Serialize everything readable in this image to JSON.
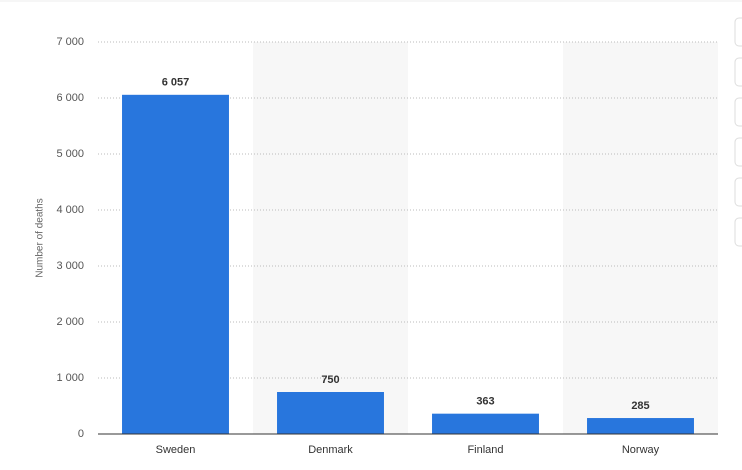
{
  "chart_data": {
    "type": "bar",
    "y_label": "Number of deaths",
    "categories": [
      "Sweden",
      "Denmark",
      "Finland",
      "Norway"
    ],
    "values": [
      6057,
      750,
      363,
      285
    ],
    "value_labels": [
      "6 057",
      "750",
      "363",
      "285"
    ],
    "color": "#2876dd",
    "ylim": [
      0,
      7000
    ],
    "yticks": [
      {
        "value": 0,
        "label": "0"
      },
      {
        "value": 1000,
        "label": "1 000"
      },
      {
        "value": 2000,
        "label": "2 000"
      },
      {
        "value": 3000,
        "label": "3 000"
      },
      {
        "value": 4000,
        "label": "4 000"
      },
      {
        "value": 5000,
        "label": "5 000"
      },
      {
        "value": 6000,
        "label": "6 000"
      },
      {
        "value": 7000,
        "label": "7 000"
      }
    ],
    "grid": true
  }
}
